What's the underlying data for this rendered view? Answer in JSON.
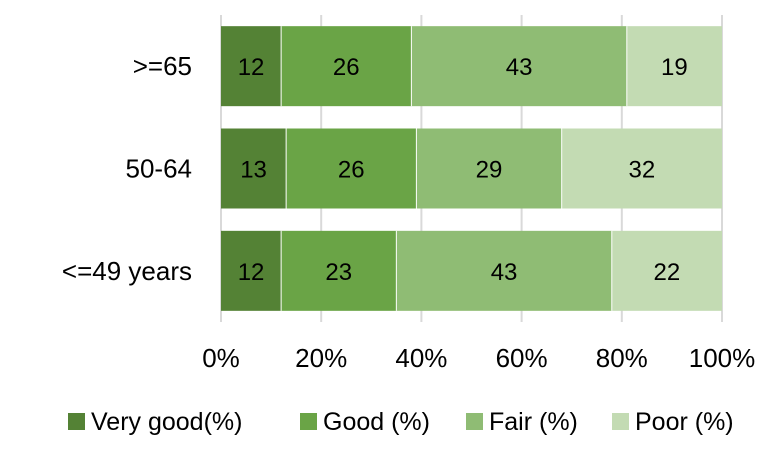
{
  "chart_data": {
    "type": "bar",
    "orientation": "horizontal",
    "stacked": "percent",
    "title": "",
    "xlabel": "",
    "ylabel": "",
    "categories": [
      ">=65",
      "50-64",
      "<=49 years"
    ],
    "series": [
      {
        "name": "Very good(%)",
        "values": [
          12,
          13,
          12
        ],
        "color": "#548235"
      },
      {
        "name": "Good (%)",
        "values": [
          26,
          26,
          23
        ],
        "color": "#6aa446"
      },
      {
        "name": "Fair (%)",
        "values": [
          43,
          29,
          43
        ],
        "color": "#8fbc74"
      },
      {
        "name": "Poor (%)",
        "values": [
          19,
          32,
          22
        ],
        "color": "#c3dbb3"
      }
    ],
    "xlim": [
      0,
      100
    ],
    "x_ticks": [
      "0%",
      "20%",
      "40%",
      "60%",
      "80%",
      "100%"
    ],
    "grid": "vertical",
    "legend_position": "bottom",
    "data_labels": true
  }
}
